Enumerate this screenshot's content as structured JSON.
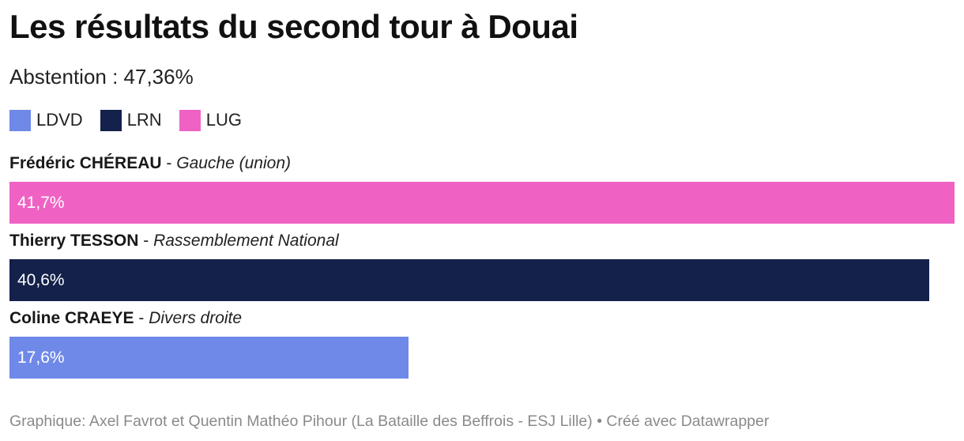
{
  "chart_data": {
    "type": "bar",
    "orientation": "horizontal",
    "title": "Les résultats du second tour à Douai",
    "subtitle": "Abstention : 47,36%",
    "legend": [
      {
        "label": "LDVD",
        "color": "#6f89e8"
      },
      {
        "label": "LRN",
        "color": "#13214b"
      },
      {
        "label": "LUG",
        "color": "#ef62c4"
      }
    ],
    "categories": [
      "Frédéric CHÉREAU - Gauche (union)",
      "Thierry TESSON - Rassemblement National",
      "Coline CRAEYE - Divers droite"
    ],
    "rows": [
      {
        "name": "Frédéric CHÉREAU",
        "separator": " - ",
        "party": "Gauche (union)",
        "value": 41.7,
        "value_label": "41,7%",
        "group": "LUG",
        "color": "#ef62c4"
      },
      {
        "name": "Thierry TESSON",
        "separator": " - ",
        "party": "Rassemblement National",
        "value": 40.6,
        "value_label": "40,6%",
        "group": "LRN",
        "color": "#13214b"
      },
      {
        "name": "Coline CRAEYE",
        "separator": " - ",
        "party": "Divers droite",
        "value": 17.6,
        "value_label": "17,6%",
        "group": "LDVD",
        "color": "#6f89e8"
      }
    ],
    "values": [
      41.7,
      40.6,
      17.6
    ],
    "xlim": [
      0,
      41.7
    ],
    "grid": false,
    "legend_position": "top-left"
  },
  "footer": "Graphique: Axel Favrot et Quentin Mathéo Pihour (La Bataille des Beffrois - ESJ Lille) • Créé avec Datawrapper"
}
